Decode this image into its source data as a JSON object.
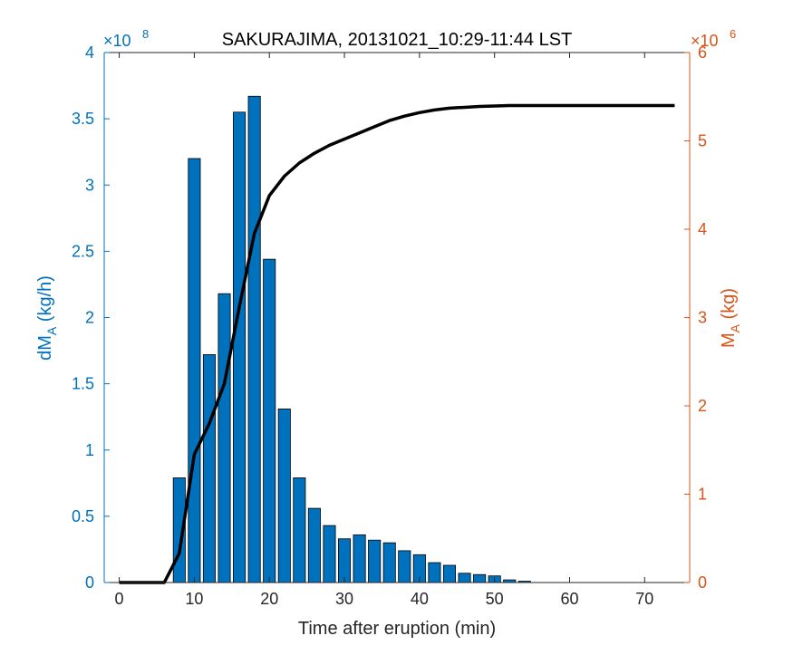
{
  "chart_data": {
    "type": "bar",
    "title": "SAKURAJIMA, 20131021_10:29-11:44 LST",
    "xlabel": "Time after eruption (min)",
    "xlim": [
      -2,
      76
    ],
    "xticks": [
      "0",
      "10",
      "20",
      "30",
      "40",
      "50",
      "60",
      "70"
    ],
    "left_axis": {
      "label_main": "dM",
      "label_sub": "A",
      "label_unit": "(kg/h)",
      "ylim": [
        0,
        4
      ],
      "yticks": [
        "0",
        "0.5",
        "1",
        "1.5",
        "2",
        "2.5",
        "3",
        "3.5",
        "4"
      ],
      "exponent_base": "×10",
      "exponent_power": "8",
      "color": "#0072BD"
    },
    "right_axis": {
      "label_main": "M",
      "label_sub": "A",
      "label_unit": "(kg)",
      "ylim": [
        0,
        6
      ],
      "yticks": [
        "0",
        "1",
        "2",
        "3",
        "4",
        "5",
        "6"
      ],
      "exponent_base": "×10",
      "exponent_power": "6",
      "color": "#D95319"
    },
    "bar_series": {
      "name": "dMA",
      "color": "#0072BD",
      "x": [
        8,
        10,
        12,
        14,
        16,
        18,
        20,
        22,
        24,
        26,
        28,
        30,
        32,
        34,
        36,
        38,
        40,
        42,
        44,
        46,
        48,
        50,
        52,
        54
      ],
      "values": [
        0.79,
        3.2,
        1.72,
        2.18,
        3.55,
        3.67,
        2.44,
        1.31,
        0.79,
        0.56,
        0.43,
        0.33,
        0.36,
        0.32,
        0.3,
        0.24,
        0.21,
        0.15,
        0.13,
        0.07,
        0.06,
        0.05,
        0.02,
        0.01
      ]
    },
    "line_series": {
      "name": "MA",
      "color": "#000000",
      "x": [
        0,
        6,
        8,
        10,
        12,
        14,
        16,
        18,
        20,
        22,
        24,
        26,
        28,
        30,
        32,
        34,
        36,
        38,
        40,
        42,
        44,
        46,
        48,
        50,
        52,
        54,
        56,
        58,
        60,
        62,
        64,
        66,
        68,
        70,
        72,
        74
      ],
      "values": [
        0,
        0,
        0.33,
        1.45,
        1.8,
        2.25,
        3.12,
        3.95,
        4.38,
        4.6,
        4.75,
        4.86,
        4.95,
        5.02,
        5.09,
        5.16,
        5.23,
        5.28,
        5.32,
        5.35,
        5.37,
        5.38,
        5.39,
        5.395,
        5.4,
        5.4,
        5.4,
        5.4,
        5.4,
        5.4,
        5.4,
        5.4,
        5.4,
        5.4,
        5.4,
        5.4
      ]
    }
  }
}
